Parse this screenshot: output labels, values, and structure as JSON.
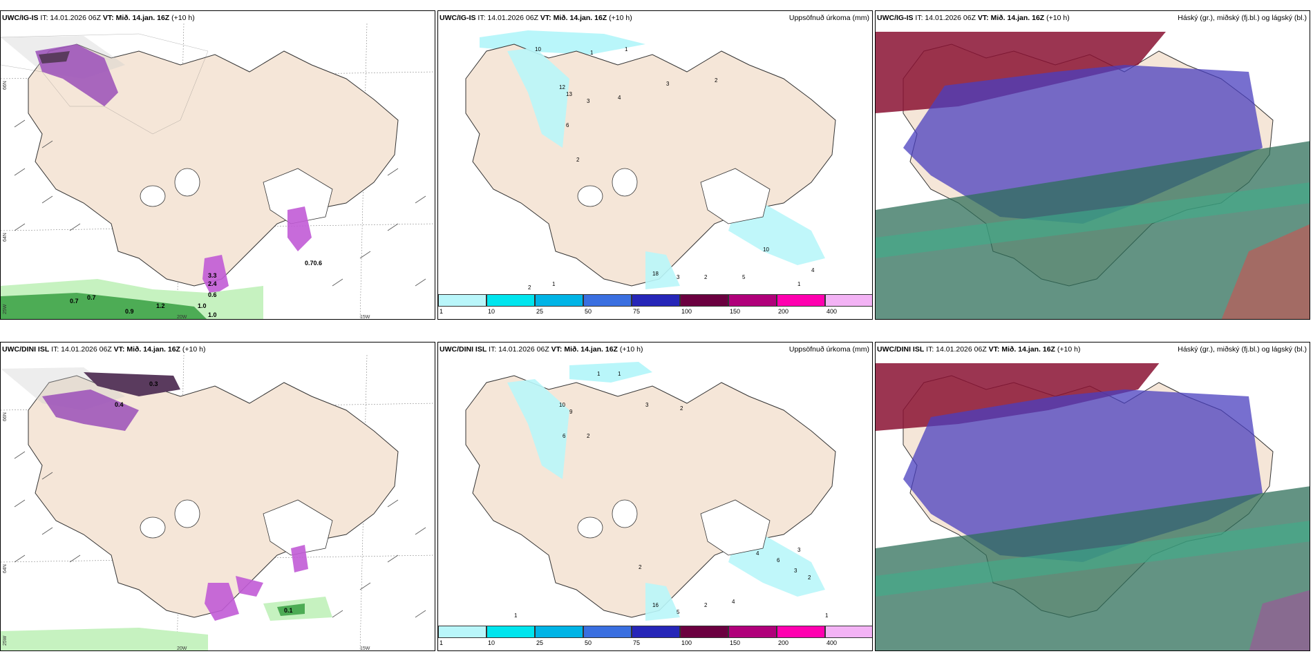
{
  "rows": [
    {
      "model": "UWC/IG-IS",
      "issue_label": "IT: 14.01.2026 06Z",
      "valid_prefix": "VT:",
      "valid_time": "Mið. 14.jan. 16Z",
      "lead": "(+10 h)",
      "lat_top": "66N",
      "lat_bottom": "64N",
      "lat_bottom_left": "25W",
      "lon_left": "20W",
      "lon_right": "15W",
      "wind_values": [
        "0.7",
        "0.7",
        "0.9",
        "1.2",
        "1.0",
        "1.0",
        "0.6",
        "0.70.6",
        "3.3",
        "2.4"
      ],
      "precip_title": "Uppsöfnuð úrkoma (mm)",
      "precip_values": [
        "1",
        "1",
        "10",
        "12",
        "13",
        "6",
        "3",
        "2",
        "4",
        "3",
        "2",
        "10",
        "4",
        "18",
        "3",
        "2",
        "5",
        "1",
        "2",
        "1"
      ],
      "cloud_title": "Háský (gr.), miðský (fj.bl.) og lágský (bl.)"
    },
    {
      "model": "UWC/DINI ISL",
      "issue_label": "IT: 14.01.2026 06Z",
      "valid_prefix": "VT:",
      "valid_time": "Mið. 14.jan. 16Z",
      "lead": "(+10 h)",
      "lat_top": "66N",
      "lat_bottom": "64N",
      "lat_bottom_left": "25W",
      "lon_left": "20W",
      "lon_right": "15W",
      "wind_values": [
        "0.3",
        "0.4",
        "0.1"
      ],
      "precip_title": "Uppsöfnuð úrkoma (mm)",
      "precip_values": [
        "1",
        "1",
        "10",
        "9",
        "6",
        "2",
        "3",
        "2",
        "4",
        "3",
        "6",
        "3",
        "2",
        "16",
        "5",
        "2",
        "4",
        "1",
        "2",
        "1"
      ],
      "cloud_title": "Háský (gr.), miðský (fj.bl.) og lágský (bl.)"
    }
  ],
  "legend": {
    "labels": [
      "1",
      "10",
      "25",
      "50",
      "75",
      "100",
      "150",
      "200",
      "400"
    ],
    "colors": [
      "#b9f6fa",
      "#00e5ee",
      "#00b4e6",
      "#3a6fe0",
      "#2626b8",
      "#6b0040",
      "#b0007a",
      "#ff00b0",
      "#f3b3f5"
    ]
  },
  "colors": {
    "land": "#f5e6d8",
    "sea": "#ffffff",
    "precip_light": "#b9f6fa",
    "wind_green": "#2e9a3a",
    "wind_green_light": "#c6f2c0",
    "snow_purple": "#b05ac9",
    "high_cloud": "#8a1233",
    "mid_cloud": "#4a3fbf",
    "low_cloud": "#2f6f5a"
  }
}
